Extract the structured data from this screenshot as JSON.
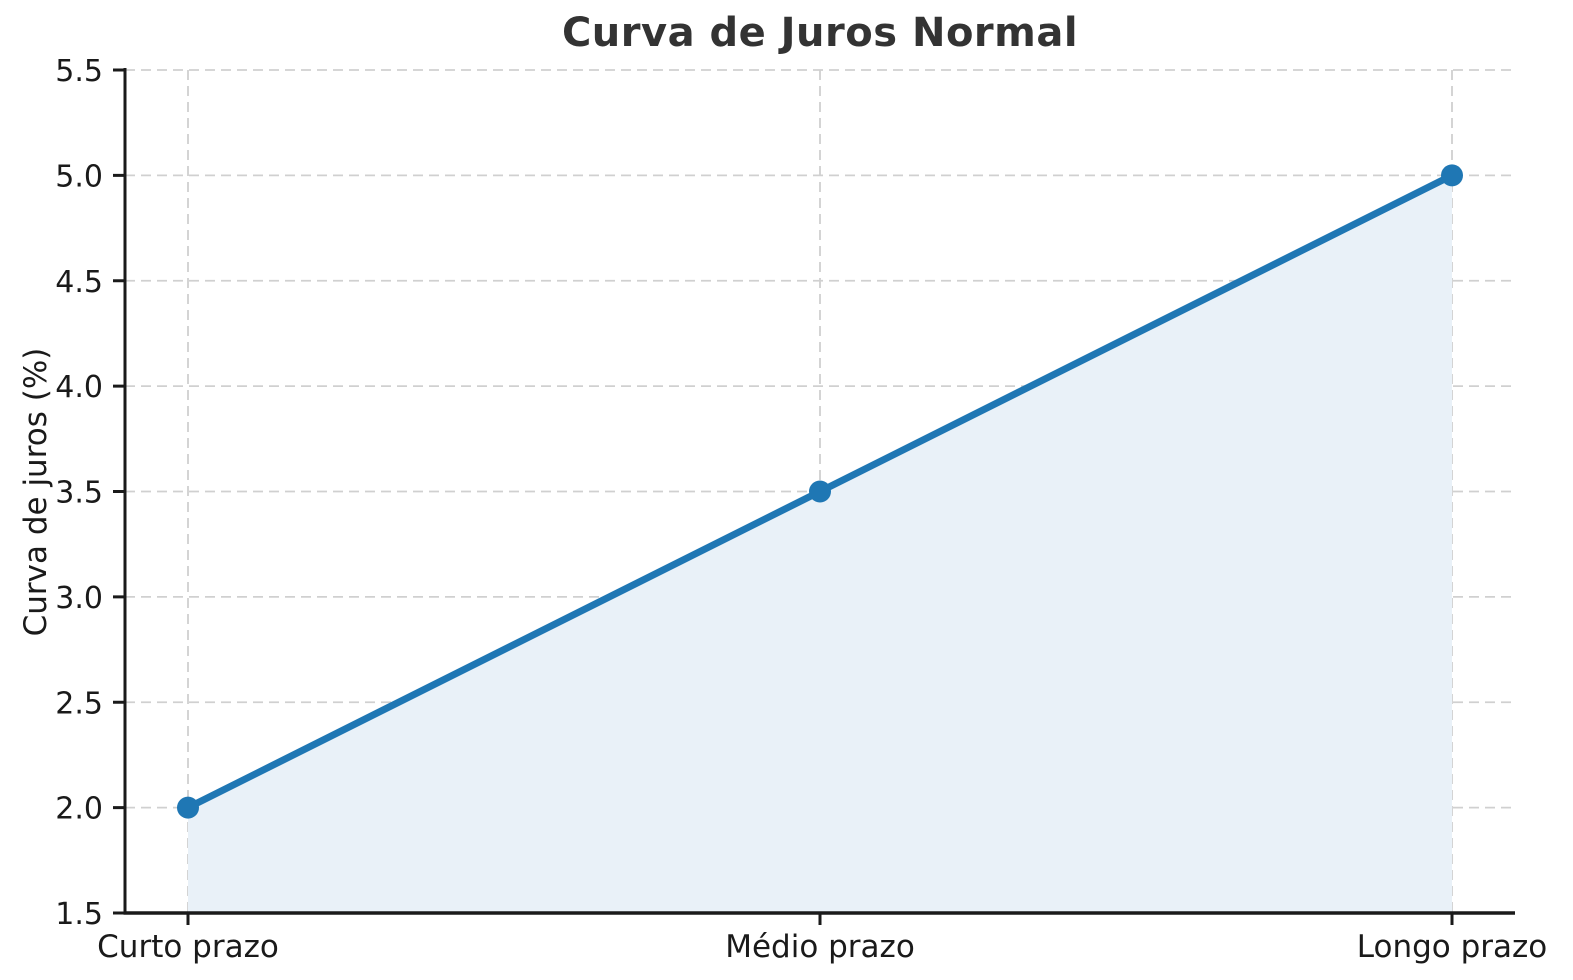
{
  "chart_data": {
    "type": "area",
    "title": "Curva de Juros Normal",
    "xlabel": "",
    "ylabel": "Curva de juros (%)",
    "categories": [
      "Curto prazo",
      "Médio prazo",
      "Longo prazo"
    ],
    "values": [
      2.0,
      3.5,
      5.0
    ],
    "ylim": [
      1.5,
      5.5
    ],
    "ytick_step": 0.5,
    "ytick_labels": [
      "1.5",
      "2.0",
      "2.5",
      "3.0",
      "3.5",
      "4.0",
      "4.5",
      "5.0",
      "5.5"
    ],
    "grid": true,
    "grid_style": "dashed",
    "legend_position": "none",
    "colors": {
      "line": "#1f77b4",
      "marker": "#1f77b4",
      "fill": "#e9f1f8",
      "grid": "#d0d0d0",
      "axis": "#1a1a1a",
      "text": "#333333"
    }
  }
}
